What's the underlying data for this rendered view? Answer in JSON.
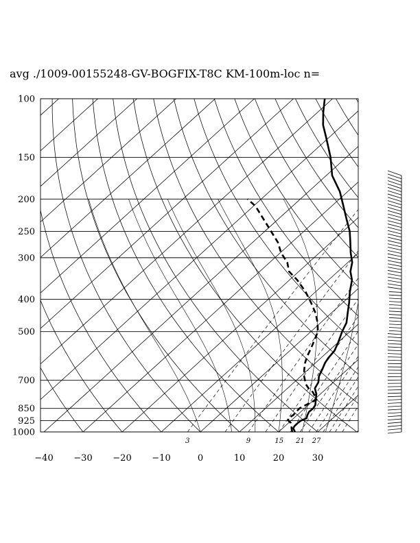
{
  "chart_data": {
    "type": "line",
    "chart_kind": "skew-T log-P",
    "title": "avg ./1009-00155248-GV-BOGFIX-T8C KM-100m-loc n=",
    "pressure_levels": [
      100,
      150,
      200,
      250,
      300,
      400,
      500,
      700,
      850,
      925,
      1000
    ],
    "pressure_labels": [
      "100",
      "150",
      "200",
      "250",
      "300",
      "400",
      "500",
      "700",
      "850",
      "925",
      "1000"
    ],
    "temperature_ticks": [
      -40,
      -30,
      -20,
      -10,
      0,
      10,
      20,
      30
    ],
    "temperature_labels": [
      "−40",
      "−30",
      "−20",
      "−10",
      "0",
      "10",
      "20",
      "30"
    ],
    "mixing_ratio_labels": [
      "3",
      "9",
      "15",
      "21",
      "27"
    ],
    "mixing_ratio_values": [
      3,
      9,
      15,
      21,
      27
    ],
    "xlim": [
      -40,
      40
    ],
    "ylim": [
      1000,
      100
    ],
    "series": [
      {
        "role": "temperature",
        "style": "solid",
        "p": [
          1000,
          990,
          975,
          960,
          940,
          925,
          910,
          890,
          870,
          850,
          830,
          800,
          770,
          740,
          710,
          680,
          650,
          620,
          600,
          570,
          540,
          500,
          470,
          440,
          410,
          380,
          350,
          330,
          310,
          290,
          270,
          250,
          230,
          210,
          190,
          170,
          150,
          130,
          120,
          110,
          100
        ],
        "t": [
          24.2,
          23.6,
          22.7,
          22.4,
          22.4,
          22.5,
          23.3,
          22.6,
          22.1,
          22.2,
          21.8,
          20.4,
          19.0,
          17.0,
          16.2,
          14.6,
          13.6,
          12.4,
          11.9,
          11.4,
          10.1,
          8.0,
          6.6,
          4.2,
          1.7,
          -1.2,
          -4.0,
          -6.8,
          -8.9,
          -12.0,
          -15.0,
          -18.3,
          -22.5,
          -27.0,
          -32.0,
          -38.5,
          -44.0,
          -51.0,
          -55.0,
          -58.5,
          -62.0
        ]
      },
      {
        "role": "dewpoint",
        "style": "dashed",
        "p": [
          1000,
          980,
          960,
          940,
          925,
          910,
          890,
          870,
          850,
          830,
          800,
          780,
          760,
          740,
          720,
          700,
          680,
          650,
          620,
          590,
          560,
          530,
          500,
          470,
          440,
          410,
          380,
          350,
          330,
          310,
          290,
          270,
          250,
          230,
          210,
          200
        ],
        "t": [
          23.5,
          22.5,
          21.6,
          20.6,
          19.3,
          18.6,
          19.0,
          18.8,
          18.7,
          19.4,
          20.6,
          19.1,
          17.6,
          15.4,
          13.6,
          12.2,
          10.8,
          9.0,
          7.3,
          5.9,
          4.7,
          3.3,
          1.8,
          -0.8,
          -4.0,
          -8.0,
          -12.5,
          -18.0,
          -22.5,
          -25.5,
          -29.8,
          -33.5,
          -38.4,
          -43.7,
          -49.5,
          -53.5
        ]
      }
    ],
    "wind_barbs": {
      "p_top": 170,
      "p_bottom": 1000,
      "count": 80
    }
  }
}
